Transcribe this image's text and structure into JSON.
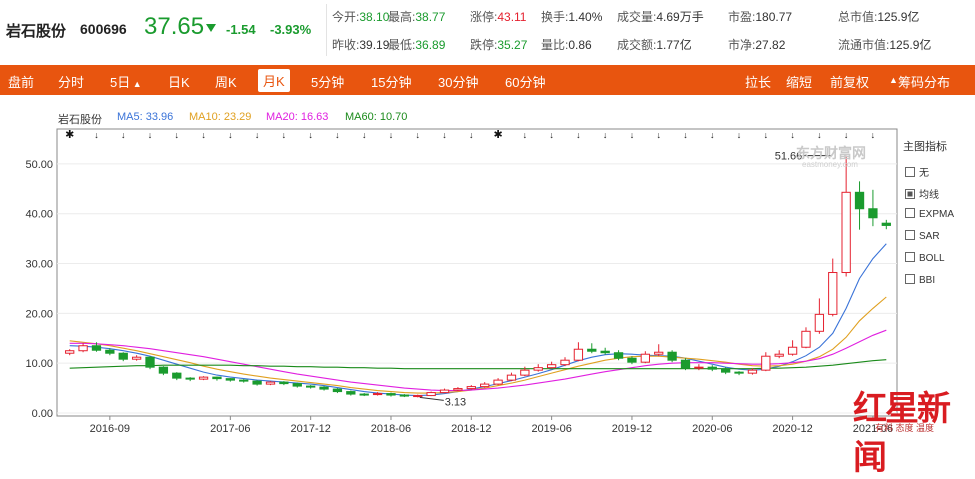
{
  "quote": {
    "name": "岩石股份",
    "code": "600696",
    "price": "37.65",
    "change": "-1.54",
    "change_pct": "-3.93%",
    "fields": [
      {
        "label": "今开:",
        "value": "38.10",
        "color": "green"
      },
      {
        "label": "最高:",
        "value": "38.77",
        "color": "green"
      },
      {
        "label": "涨停:",
        "value": "43.11",
        "color": "red"
      },
      {
        "label": "换手:",
        "value": "1.40%",
        "color": "dark"
      },
      {
        "label": "成交量:",
        "value": "4.69万手",
        "color": "dark"
      },
      {
        "label": "市盈:",
        "value": "180.77",
        "color": "dark"
      },
      {
        "label": "总市值:",
        "value": "125.9亿",
        "color": "dark"
      },
      {
        "label": "昨收:",
        "value": "39.19",
        "color": "dark"
      },
      {
        "label": "最低:",
        "value": "36.89",
        "color": "green"
      },
      {
        "label": "跌停:",
        "value": "35.27",
        "color": "green"
      },
      {
        "label": "量比:",
        "value": "0.86",
        "color": "dark"
      },
      {
        "label": "成交额:",
        "value": "1.77亿",
        "color": "dark"
      },
      {
        "label": "市净:",
        "value": "27.82",
        "color": "dark"
      },
      {
        "label": "流通市值:",
        "value": "125.9亿",
        "color": "dark"
      }
    ]
  },
  "toolbar": {
    "tabs": [
      "盘前",
      "分时",
      "5日",
      "日K",
      "周K",
      "月K",
      "5分钟",
      "15分钟",
      "30分钟",
      "60分钟"
    ],
    "active_tab": "月K",
    "right_tabs": [
      "拉长",
      "缩短",
      "前复权",
      "筹码分布"
    ]
  },
  "legend": {
    "stock": "岩石股份",
    "ma5": "MA5: 33.96",
    "ma10": "MA10: 23.29",
    "ma20": "MA20: 16.63",
    "ma60": "MA60: 10.70"
  },
  "side_panel": {
    "title": "主图指标",
    "options": [
      {
        "label": "无",
        "checked": false
      },
      {
        "label": "均线",
        "checked": true
      },
      {
        "label": "EXPMA",
        "checked": false
      },
      {
        "label": "SAR",
        "checked": false
      },
      {
        "label": "BOLL",
        "checked": false
      },
      {
        "label": "BBI",
        "checked": false
      }
    ]
  },
  "watermark": {
    "text": "东方财富网",
    "sub": "eastmoney.com"
  },
  "brand": {
    "text": "红星新闻",
    "sub": "有料 态度 温度"
  },
  "colors": {
    "up": "#e5212f",
    "down": "#1a9b2e",
    "ma5": "#3a73d8",
    "ma10": "#e0a020",
    "ma20": "#e020e0",
    "ma60": "#1a8a1a",
    "toolbar": "#e8550f"
  },
  "chart_data": {
    "type": "candlestick",
    "ylim": [
      0,
      55
    ],
    "yticks": [
      "0.00",
      "10.00",
      "20.00",
      "30.00",
      "40.00",
      "50.00"
    ],
    "xticks": [
      {
        "label": "2016-09",
        "index": 3
      },
      {
        "label": "2017-06",
        "index": 12
      },
      {
        "label": "2017-12",
        "index": 18
      },
      {
        "label": "2018-06",
        "index": 24
      },
      {
        "label": "2018-12",
        "index": 30
      },
      {
        "label": "2019-06",
        "index": 36
      },
      {
        "label": "2019-12",
        "index": 42
      },
      {
        "label": "2020-06",
        "index": 48
      },
      {
        "label": "2020-12",
        "index": 54
      },
      {
        "label": "2021-06",
        "index": 60
      }
    ],
    "annotations": [
      {
        "text": "51.66",
        "index": 57,
        "value": 51.66
      },
      {
        "text": "3.13",
        "index": 26,
        "value": 3.13
      }
    ],
    "candles": [
      [
        12.0,
        12.5,
        11.6,
        12.8
      ],
      [
        12.5,
        13.5,
        12.2,
        14.0
      ],
      [
        13.5,
        12.6,
        12.3,
        14.2
      ],
      [
        12.6,
        12.0,
        11.6,
        13.0
      ],
      [
        12.0,
        10.8,
        10.4,
        12.2
      ],
      [
        10.8,
        11.2,
        10.5,
        11.6
      ],
      [
        11.2,
        9.2,
        8.8,
        11.4
      ],
      [
        9.2,
        8.0,
        7.6,
        9.4
      ],
      [
        8.0,
        7.0,
        6.6,
        8.2
      ],
      [
        7.0,
        6.8,
        6.4,
        7.2
      ],
      [
        6.8,
        7.2,
        6.6,
        7.4
      ],
      [
        7.2,
        6.9,
        6.5,
        7.3
      ],
      [
        6.9,
        6.6,
        6.3,
        7.0
      ],
      [
        6.6,
        6.4,
        6.1,
        6.8
      ],
      [
        6.4,
        5.8,
        5.5,
        6.6
      ],
      [
        5.8,
        6.2,
        5.6,
        6.4
      ],
      [
        6.2,
        5.9,
        5.6,
        6.4
      ],
      [
        5.9,
        5.4,
        5.1,
        6.1
      ],
      [
        5.4,
        5.2,
        4.9,
        5.6
      ],
      [
        5.2,
        4.8,
        4.5,
        5.4
      ],
      [
        4.8,
        4.3,
        4.0,
        5.0
      ],
      [
        4.3,
        3.8,
        3.5,
        4.5
      ],
      [
        3.8,
        3.7,
        3.4,
        4.0
      ],
      [
        3.7,
        3.9,
        3.5,
        4.2
      ],
      [
        3.9,
        3.6,
        3.3,
        4.1
      ],
      [
        3.6,
        3.4,
        3.2,
        3.8
      ],
      [
        3.4,
        3.5,
        3.13,
        3.7
      ],
      [
        3.5,
        4.1,
        3.4,
        4.3
      ],
      [
        4.1,
        4.6,
        4.0,
        4.9
      ],
      [
        4.6,
        4.9,
        4.4,
        5.2
      ],
      [
        4.9,
        5.3,
        4.7,
        5.6
      ],
      [
        5.3,
        5.8,
        5.1,
        6.2
      ],
      [
        5.8,
        6.6,
        5.6,
        7.0
      ],
      [
        6.6,
        7.6,
        6.4,
        8.1
      ],
      [
        7.6,
        8.6,
        7.4,
        9.3
      ],
      [
        8.6,
        9.1,
        8.3,
        9.8
      ],
      [
        9.1,
        9.7,
        8.9,
        10.3
      ],
      [
        9.7,
        10.6,
        9.4,
        11.2
      ],
      [
        10.6,
        12.8,
        10.4,
        14.2
      ],
      [
        12.8,
        12.4,
        12.0,
        14.0
      ],
      [
        12.4,
        12.1,
        11.7,
        13.1
      ],
      [
        12.1,
        11.0,
        10.6,
        12.6
      ],
      [
        11.0,
        10.2,
        9.8,
        11.4
      ],
      [
        10.2,
        11.8,
        10.0,
        12.4
      ],
      [
        11.8,
        12.2,
        11.4,
        13.8
      ],
      [
        12.2,
        10.6,
        10.2,
        12.6
      ],
      [
        10.6,
        9.0,
        8.6,
        11.0
      ],
      [
        9.0,
        9.2,
        8.6,
        9.8
      ],
      [
        9.2,
        8.8,
        8.4,
        9.6
      ],
      [
        8.8,
        8.2,
        7.8,
        9.2
      ],
      [
        8.2,
        8.0,
        7.6,
        8.4
      ],
      [
        8.0,
        8.6,
        7.7,
        9.0
      ],
      [
        8.6,
        11.4,
        8.4,
        12.2
      ],
      [
        11.4,
        11.8,
        11.0,
        12.6
      ],
      [
        11.8,
        13.2,
        11.5,
        14.6
      ],
      [
        13.2,
        16.4,
        13.0,
        17.2
      ],
      [
        16.4,
        19.8,
        15.9,
        23.0
      ],
      [
        19.8,
        28.2,
        19.4,
        31.0
      ],
      [
        28.2,
        44.3,
        27.4,
        51.66
      ],
      [
        44.3,
        41.0,
        36.8,
        46.5
      ],
      [
        41.0,
        39.19,
        37.5,
        44.8
      ],
      [
        38.1,
        37.65,
        36.89,
        38.77
      ]
    ],
    "series": [
      {
        "name": "MA5",
        "values": [
          13.5,
          13.4,
          13.2,
          12.9,
          12.5,
          12.0,
          11.4,
          10.6,
          9.8,
          9.0,
          8.2,
          7.6,
          7.2,
          6.9,
          6.6,
          6.4,
          6.2,
          6.0,
          5.8,
          5.5,
          5.1,
          4.7,
          4.3,
          4.0,
          3.8,
          3.6,
          3.5,
          3.6,
          3.9,
          4.3,
          4.8,
          5.3,
          5.9,
          6.5,
          7.2,
          7.9,
          8.7,
          9.6,
          10.5,
          11.2,
          11.7,
          11.9,
          11.8,
          11.6,
          11.5,
          11.4,
          11.0,
          10.4,
          9.8,
          9.2,
          8.8,
          8.6,
          8.8,
          9.4,
          10.3,
          11.5,
          13.2,
          16.0,
          21.0,
          27.0,
          31.0,
          33.96
        ]
      },
      {
        "name": "MA10",
        "values": [
          14.5,
          14.2,
          13.9,
          13.5,
          13.0,
          12.5,
          11.9,
          11.3,
          10.7,
          10.1,
          9.4,
          8.8,
          8.3,
          7.8,
          7.4,
          7.0,
          6.7,
          6.4,
          6.1,
          5.8,
          5.5,
          5.1,
          4.8,
          4.5,
          4.3,
          4.1,
          4.0,
          4.0,
          4.1,
          4.3,
          4.6,
          5.0,
          5.5,
          6.0,
          6.6,
          7.3,
          8.0,
          8.7,
          9.4,
          10.0,
          10.6,
          11.0,
          11.3,
          11.4,
          11.4,
          11.2,
          11.0,
          10.8,
          10.5,
          10.2,
          9.8,
          9.5,
          9.4,
          9.5,
          9.8,
          10.4,
          11.3,
          12.8,
          15.2,
          18.5,
          21.0,
          23.29
        ]
      },
      {
        "name": "MA20",
        "values": [
          14.0,
          14.0,
          13.9,
          13.7,
          13.5,
          13.2,
          12.9,
          12.5,
          12.1,
          11.7,
          11.3,
          10.8,
          10.3,
          9.8,
          9.3,
          8.8,
          8.3,
          7.8,
          7.4,
          7.0,
          6.6,
          6.2,
          5.9,
          5.6,
          5.3,
          5.0,
          4.8,
          4.6,
          4.5,
          4.5,
          4.6,
          4.8,
          5.0,
          5.3,
          5.6,
          6.0,
          6.4,
          6.8,
          7.3,
          7.8,
          8.3,
          8.7,
          9.1,
          9.5,
          9.8,
          10.0,
          10.1,
          10.1,
          10.1,
          10.0,
          9.9,
          9.8,
          9.8,
          9.9,
          10.1,
          10.4,
          10.9,
          11.8,
          13.0,
          14.3,
          15.6,
          16.63
        ]
      },
      {
        "name": "MA60",
        "values": [
          9.0,
          9.1,
          9.2,
          9.3,
          9.4,
          9.5,
          9.5,
          9.6,
          9.6,
          9.6,
          9.6,
          9.6,
          9.6,
          9.5,
          9.5,
          9.4,
          9.4,
          9.3,
          9.3,
          9.2,
          9.2,
          9.1,
          9.1,
          9.0,
          9.0,
          8.9,
          8.9,
          8.9,
          8.9,
          8.9,
          8.9,
          8.9,
          8.9,
          8.9,
          8.9,
          8.9,
          8.9,
          8.9,
          8.9,
          8.9,
          8.9,
          8.9,
          8.9,
          8.9,
          8.9,
          8.9,
          8.9,
          8.9,
          8.9,
          8.9,
          8.9,
          8.9,
          9.0,
          9.0,
          9.1,
          9.2,
          9.4,
          9.6,
          9.9,
          10.2,
          10.5,
          10.7
        ]
      }
    ]
  }
}
